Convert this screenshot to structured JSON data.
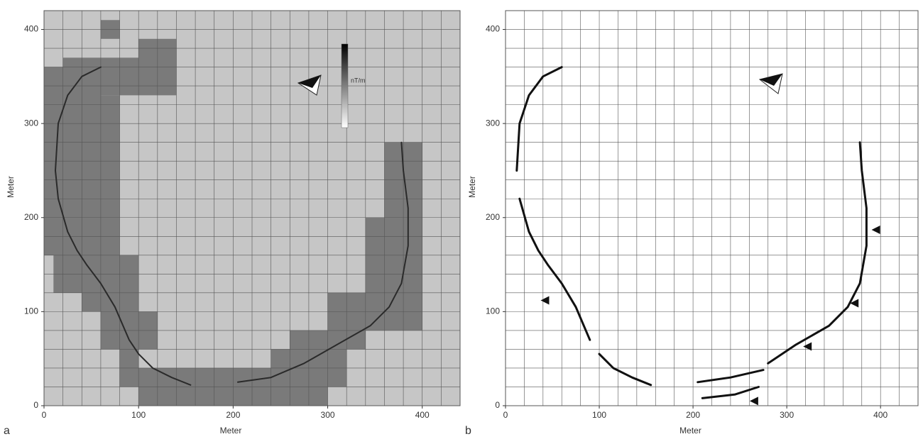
{
  "chart_data": [
    {
      "type": "map",
      "panel_label": "a",
      "xlabel": "Meter",
      "ylabel": "Meter",
      "colorbar_label": "nT/m",
      "xlim": [
        0,
        440
      ],
      "ylim": [
        0,
        420
      ],
      "xticks": [
        0,
        100,
        200,
        300,
        400
      ],
      "yticks": [
        0,
        100,
        200,
        300,
        400
      ],
      "grid_x": [
        0,
        20,
        40,
        60,
        80,
        100,
        120,
        140,
        160,
        180,
        200,
        220,
        240,
        260,
        280,
        300,
        320,
        340,
        360,
        380,
        400,
        420,
        440
      ],
      "grid_y": [
        0,
        20,
        40,
        60,
        80,
        100,
        120,
        140,
        160,
        180,
        200,
        220,
        240,
        260,
        280,
        300,
        320,
        340,
        360,
        380,
        400,
        420
      ],
      "background": "#c6c6c6",
      "block_color": "#7a7a7a",
      "line_color": "#2a2a2a",
      "blocks": [
        [
          60,
          390,
          80,
          410
        ],
        [
          100,
          330,
          140,
          390
        ],
        [
          20,
          330,
          100,
          370
        ],
        [
          0,
          220,
          60,
          360
        ],
        [
          60,
          220,
          80,
          330
        ],
        [
          0,
          160,
          80,
          220
        ],
        [
          10,
          120,
          100,
          160
        ],
        [
          40,
          100,
          100,
          120
        ],
        [
          60,
          60,
          120,
          100
        ],
        [
          80,
          20,
          100,
          100
        ],
        [
          100,
          0,
          300,
          40
        ],
        [
          180,
          0,
          300,
          40
        ],
        [
          240,
          20,
          320,
          60
        ],
        [
          260,
          60,
          340,
          80
        ],
        [
          300,
          80,
          400,
          120
        ],
        [
          340,
          120,
          400,
          200
        ],
        [
          360,
          200,
          400,
          280
        ]
      ],
      "paths": [
        {
          "x": [
            60,
            40,
            25,
            15,
            12,
            15,
            25,
            35,
            45,
            60,
            75,
            90,
            100,
            115,
            135,
            155
          ],
          "y": [
            360,
            350,
            330,
            300,
            250,
            220,
            185,
            165,
            150,
            130,
            105,
            70,
            55,
            40,
            30,
            22
          ]
        },
        {
          "x": [
            205,
            240,
            275,
            310,
            345,
            365,
            378,
            385,
            385,
            380,
            378
          ],
          "y": [
            25,
            30,
            45,
            65,
            85,
            105,
            130,
            170,
            210,
            250,
            280
          ]
        }
      ]
    },
    {
      "type": "map",
      "panel_label": "b",
      "xlabel": "Meter",
      "ylabel": "Meter",
      "xlim": [
        0,
        440
      ],
      "ylim": [
        0,
        420
      ],
      "xticks": [
        0,
        100,
        200,
        300,
        400
      ],
      "yticks": [
        0,
        100,
        200,
        300,
        400
      ],
      "grid_x": [
        0,
        20,
        40,
        60,
        80,
        100,
        120,
        140,
        160,
        180,
        200,
        220,
        240,
        260,
        280,
        300,
        320,
        340,
        360,
        380,
        400,
        420,
        440
      ],
      "grid_y": [
        0,
        20,
        40,
        60,
        80,
        100,
        120,
        140,
        160,
        180,
        200,
        220,
        240,
        260,
        280,
        300,
        320,
        340,
        360,
        380,
        400,
        420
      ],
      "background": "#ffffff",
      "line_color": "#111111",
      "paths": [
        {
          "x": [
            60,
            40,
            25,
            15,
            12
          ],
          "y": [
            360,
            350,
            330,
            300,
            250
          ]
        },
        {
          "x": [
            15,
            25,
            35,
            45,
            60,
            75,
            90
          ],
          "y": [
            220,
            185,
            165,
            150,
            130,
            105,
            70
          ]
        },
        {
          "x": [
            100,
            115,
            135,
            155
          ],
          "y": [
            55,
            40,
            30,
            22
          ]
        },
        {
          "x": [
            205,
            240,
            275
          ],
          "y": [
            25,
            30,
            38
          ]
        },
        {
          "x": [
            210,
            245,
            270
          ],
          "y": [
            8,
            12,
            20
          ]
        },
        {
          "x": [
            280,
            310,
            345,
            365,
            378,
            385,
            385,
            380,
            378
          ],
          "y": [
            45,
            65,
            85,
            105,
            130,
            170,
            210,
            250,
            280
          ]
        }
      ],
      "markers": {
        "x": [
          42,
          395,
          372,
          322,
          265
        ],
        "y": [
          112,
          187,
          109,
          63,
          5
        ]
      }
    }
  ]
}
